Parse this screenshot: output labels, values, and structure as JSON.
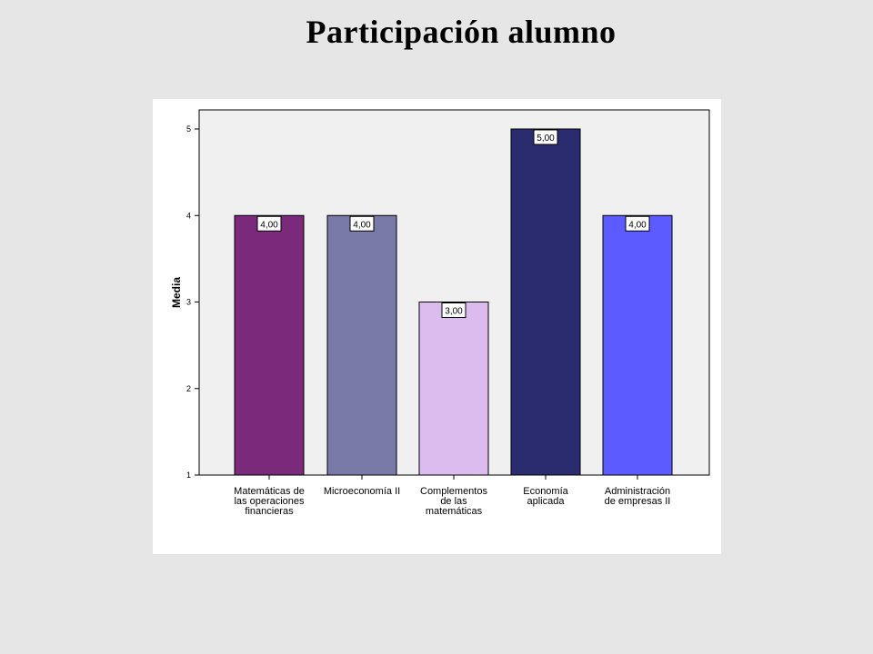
{
  "slide": {
    "title": "Participación alumno"
  },
  "chart_data": {
    "type": "bar",
    "ylabel": "Media",
    "xlabel": "",
    "ylim": [
      1,
      5
    ],
    "yticks": [
      "1",
      "2",
      "3",
      "4",
      "5"
    ],
    "grid": false,
    "legend": "none",
    "categories": [
      [
        "Matemáticas de",
        "las operaciones",
        "financieras"
      ],
      [
        "Microeconomía II"
      ],
      [
        "Complementos",
        "de las",
        "matemáticas"
      ],
      [
        "Economía",
        "aplicada"
      ],
      [
        "Administración",
        "de empresas II"
      ]
    ],
    "values": [
      4,
      4,
      3,
      5,
      4
    ],
    "data_labels": [
      "4,00",
      "4,00",
      "3,00",
      "5,00",
      "4,00"
    ],
    "colors": [
      "#7b2a7b",
      "#7a7aa8",
      "#dcbcef",
      "#2b2b70",
      "#5b5bff"
    ],
    "plot_background": "#f0f0f0",
    "panel_background": "#ffffff",
    "page_background": "#e6e6e6"
  }
}
